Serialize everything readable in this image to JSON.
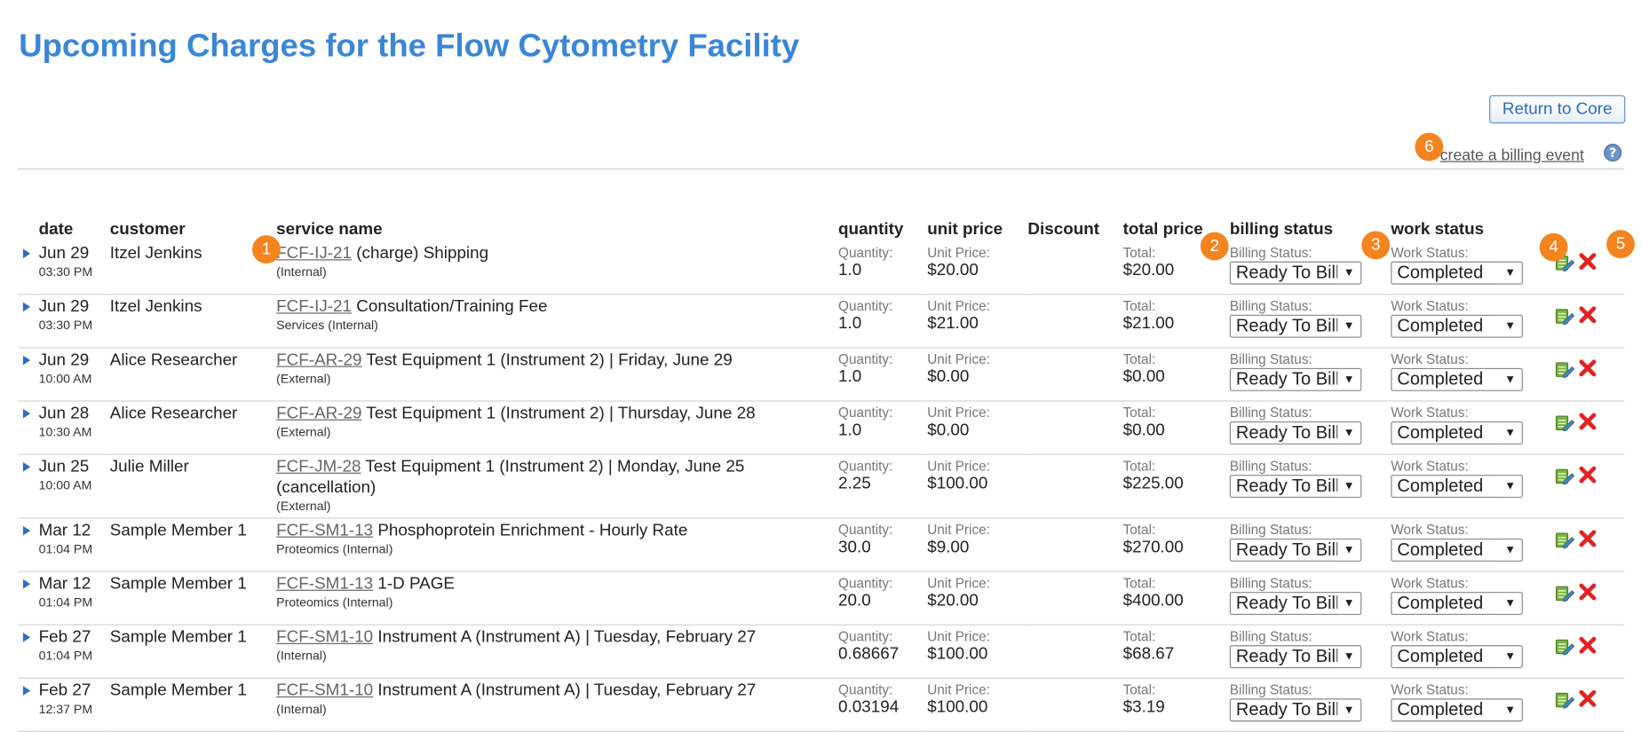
{
  "header": {
    "title": "Upcoming Charges for the Flow Cytometry Facility",
    "return_button": "Return to Core",
    "create_link": "create a billing event"
  },
  "callouts": [
    "1",
    "2",
    "3",
    "4",
    "5",
    "6"
  ],
  "table": {
    "columns": [
      "date",
      "customer",
      "service name",
      "quantity",
      "unit price",
      "Discount",
      "total price",
      "billing status",
      "work status"
    ],
    "labels": {
      "quantity": "Quantity:",
      "unit_price": "Unit Price:",
      "total": "Total:",
      "billing": "Billing Status:",
      "work": "Work Status:"
    },
    "rows": [
      {
        "date": "Jun 29",
        "time": "03:30 PM",
        "customer": "Itzel Jenkins",
        "code": "FCF-IJ-21",
        "service": "(charge) Shipping",
        "note": "(Internal)",
        "quantity": "1.0",
        "unit_price": "$20.00",
        "total": "$20.00",
        "billing": "Ready To Bill",
        "work": "Completed"
      },
      {
        "date": "Jun 29",
        "time": "03:30 PM",
        "customer": "Itzel Jenkins",
        "code": "FCF-IJ-21",
        "service": "Consultation/Training Fee",
        "note": "Services (Internal)",
        "quantity": "1.0",
        "unit_price": "$21.00",
        "total": "$21.00",
        "billing": "Ready To Bill",
        "work": "Completed"
      },
      {
        "date": "Jun 29",
        "time": "10:00 AM",
        "customer": "Alice Researcher",
        "code": "FCF-AR-29",
        "service": "Test Equipment 1 (Instrument 2) | Friday, June 29",
        "note": "(External)",
        "quantity": "1.0",
        "unit_price": "$0.00",
        "total": "$0.00",
        "billing": "Ready To Bill",
        "work": "Completed"
      },
      {
        "date": "Jun 28",
        "time": "10:30 AM",
        "customer": "Alice Researcher",
        "code": "FCF-AR-29",
        "service": "Test Equipment 1 (Instrument 2) | Thursday, June 28",
        "note": "(External)",
        "quantity": "1.0",
        "unit_price": "$0.00",
        "total": "$0.00",
        "billing": "Ready To Bill",
        "work": "Completed"
      },
      {
        "date": "Jun 25",
        "time": "10:00 AM",
        "customer": "Julie Miller",
        "code": "FCF-JM-28",
        "service": "Test Equipment 1 (Instrument 2) | Monday, June 25 (cancellation)",
        "note": "(External)",
        "quantity": "2.25",
        "unit_price": "$100.00",
        "total": "$225.00",
        "billing": "Ready To Bill",
        "work": "Completed"
      },
      {
        "date": "Mar 12",
        "time": "01:04 PM",
        "customer": "Sample Member 1",
        "code": "FCF-SM1-13",
        "service": "Phosphoprotein Enrichment - Hourly Rate",
        "note": "Proteomics (Internal)",
        "quantity": "30.0",
        "unit_price": "$9.00",
        "total": "$270.00",
        "billing": "Ready To Bill",
        "work": "Completed"
      },
      {
        "date": "Mar 12",
        "time": "01:04 PM",
        "customer": "Sample Member 1",
        "code": "FCF-SM1-13",
        "service": "1-D PAGE",
        "note": "Proteomics (Internal)",
        "quantity": "20.0",
        "unit_price": "$20.00",
        "total": "$400.00",
        "billing": "Ready To Bill",
        "work": "Completed"
      },
      {
        "date": "Feb 27",
        "time": "01:04 PM",
        "customer": "Sample Member 1",
        "code": "FCF-SM1-10",
        "service": "Instrument A (Instrument A) | Tuesday, February 27",
        "note": "(Internal)",
        "quantity": "0.68667",
        "unit_price": "$100.00",
        "total": "$68.67",
        "billing": "Ready To Bill",
        "work": "Completed"
      },
      {
        "date": "Feb 27",
        "time": "12:37 PM",
        "customer": "Sample Member 1",
        "code": "FCF-SM1-10",
        "service": "Instrument A (Instrument A) | Tuesday, February 27",
        "note": "(Internal)",
        "quantity": "0.03194",
        "unit_price": "$100.00",
        "total": "$3.19",
        "billing": "Ready To Bill",
        "work": "Completed"
      }
    ]
  }
}
